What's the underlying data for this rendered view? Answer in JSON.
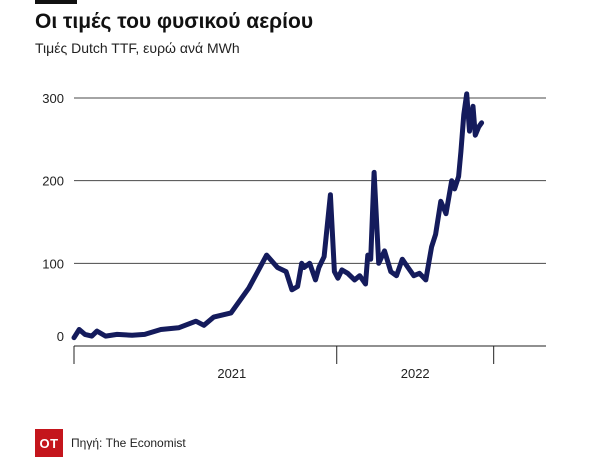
{
  "chart_data": {
    "type": "line",
    "title": "Οι τιμές του φυσικού αερίου",
    "subtitle": "Τιμές Dutch TTF, ευρώ ανά MWh",
    "y_ticks": [
      0,
      100,
      200,
      300
    ],
    "ylim": [
      0,
      300
    ],
    "x_tick_labels": [
      "2021",
      "2022"
    ],
    "xlim": [
      "2020-10-01",
      "2022-12-31"
    ],
    "grid": true,
    "line_color": "#141b5c",
    "series": [
      {
        "x": [
          "2020-10-01",
          "2020-10-10",
          "2020-10-20",
          "2020-11-01",
          "2020-11-10",
          "2020-11-25",
          "2020-12-15",
          "2021-01-10",
          "2021-02-01",
          "2021-03-01",
          "2021-04-01",
          "2021-05-01",
          "2021-05-15",
          "2021-06-01",
          "2021-07-01",
          "2021-08-01",
          "2021-09-01",
          "2021-09-20",
          "2021-10-05",
          "2021-10-15",
          "2021-10-25",
          "2021-11-01",
          "2021-11-05",
          "2021-11-15",
          "2021-11-25",
          "2021-12-01",
          "2021-12-10",
          "2021-12-21",
          "2021-12-28",
          "2022-01-03",
          "2022-01-10",
          "2022-01-20",
          "2022-02-01",
          "2022-02-10",
          "2022-02-20",
          "2022-02-24",
          "2022-03-01",
          "2022-03-07",
          "2022-03-15",
          "2022-03-25",
          "2022-04-05",
          "2022-04-15",
          "2022-04-25",
          "2022-05-05",
          "2022-05-15",
          "2022-05-25",
          "2022-06-05",
          "2022-06-15",
          "2022-06-22",
          "2022-07-01",
          "2022-07-10",
          "2022-07-20",
          "2022-07-25",
          "2022-08-01",
          "2022-08-05",
          "2022-08-10",
          "2022-08-15",
          "2022-08-20",
          "2022-08-26",
          "2022-08-30",
          "2022-09-05",
          "2022-09-10"
        ],
        "values": [
          10,
          20,
          14,
          12,
          18,
          12,
          14,
          13,
          14,
          20,
          22,
          30,
          25,
          35,
          40,
          70,
          110,
          95,
          90,
          68,
          72,
          100,
          95,
          100,
          80,
          95,
          108,
          183,
          90,
          82,
          92,
          88,
          80,
          85,
          75,
          110,
          105,
          210,
          100,
          115,
          90,
          85,
          105,
          95,
          85,
          88,
          80,
          120,
          135,
          175,
          160,
          200,
          190,
          205,
          235,
          280,
          305,
          260,
          290,
          255,
          265,
          270
        ]
      }
    ],
    "source": "Πηγή: The Economist",
    "logo_text": "OT"
  }
}
